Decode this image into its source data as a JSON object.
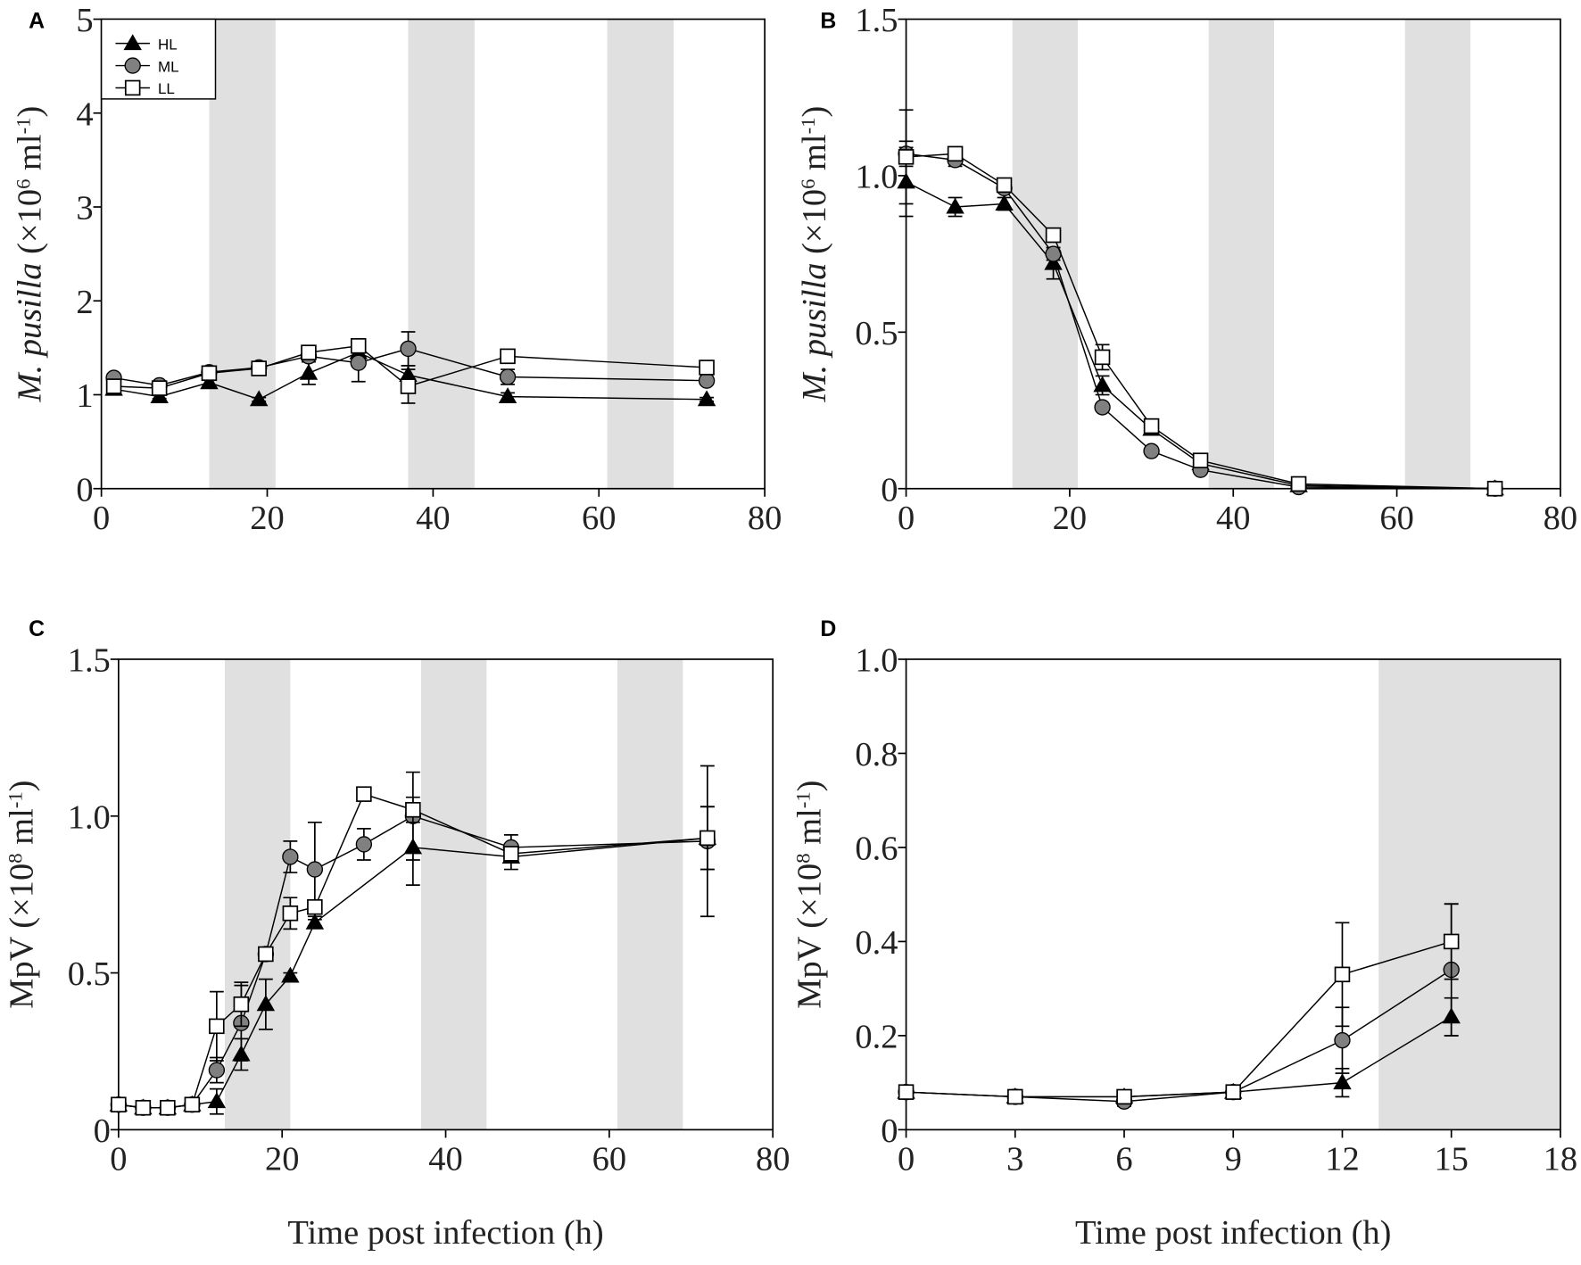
{
  "colors": {
    "shade": "#e0e0e0",
    "HL": "#000000",
    "ML": "#808080",
    "LL": "#ffffff",
    "axis": "#000000"
  },
  "legend": [
    {
      "name": "HL",
      "marker": "triangle"
    },
    {
      "name": "ML",
      "marker": "circle"
    },
    {
      "name": "LL",
      "marker": "square"
    }
  ],
  "chart_data": [
    {
      "type": "line",
      "panel": "A",
      "ylabel": {
        "italic": "M. pusilla",
        "rest": " (×10",
        "sup": "6",
        "unit": " ml",
        "sup2": "-1",
        "close": ")"
      },
      "xlabel": "",
      "xlim": [
        0,
        80
      ],
      "ylim": [
        0,
        5
      ],
      "xticks": [
        "0",
        "20",
        "40",
        "60",
        "80"
      ],
      "xtick_values": [
        0,
        20,
        40,
        60,
        80
      ],
      "yticks": [
        "0",
        "1",
        "2",
        "3",
        "4",
        "5"
      ],
      "ytick_values": [
        0,
        1,
        2,
        3,
        4,
        5
      ],
      "dark_periods": [
        [
          13,
          21
        ],
        [
          37,
          45
        ],
        [
          61,
          69
        ]
      ],
      "legend_placement": "top-left",
      "x": [
        1.5,
        7,
        13,
        19,
        25,
        31,
        37,
        49,
        73
      ],
      "series": [
        {
          "name": "HL",
          "values": [
            1.06,
            0.98,
            1.13,
            0.95,
            1.23,
            1.45,
            1.21,
            0.98,
            0.95
          ],
          "err": [
            0.02,
            0.02,
            0.03,
            0.02,
            0.12,
            0.05,
            0.1,
            0.04,
            0.02
          ]
        },
        {
          "name": "ML",
          "values": [
            1.18,
            1.1,
            1.24,
            1.29,
            1.41,
            1.34,
            1.49,
            1.19,
            1.15
          ],
          "err": [
            0.02,
            0.03,
            0.03,
            0.03,
            0.04,
            0.2,
            0.18,
            0.08,
            0.03
          ]
        },
        {
          "name": "LL",
          "values": [
            1.09,
            1.07,
            1.23,
            1.28,
            1.45,
            1.52,
            1.09,
            1.41,
            1.29
          ],
          "err": [
            0.03,
            0.03,
            0.03,
            0.03,
            0.03,
            0.06,
            0.18,
            0.03,
            0.03
          ]
        }
      ]
    },
    {
      "type": "line",
      "panel": "B",
      "ylabel": {
        "italic": "M. pusilla",
        "rest": " (×10",
        "sup": "6",
        "unit": " ml",
        "sup2": "-1",
        "close": ")"
      },
      "xlabel": "",
      "xlim": [
        0,
        80
      ],
      "ylim": [
        0,
        1.5
      ],
      "xticks": [
        "0",
        "20",
        "40",
        "60",
        "80"
      ],
      "xtick_values": [
        0,
        20,
        40,
        60,
        80
      ],
      "yticks": [
        "0",
        "0.5",
        "1.0",
        "1.5"
      ],
      "ytick_values": [
        0,
        0.5,
        1.0,
        1.5
      ],
      "dark_periods": [
        [
          13,
          21
        ],
        [
          37,
          45
        ],
        [
          61,
          69
        ]
      ],
      "x": [
        0,
        6,
        12,
        18,
        24,
        30,
        36,
        48,
        72
      ],
      "series": [
        {
          "name": "HL",
          "values": [
            0.98,
            0.9,
            0.91,
            0.72,
            0.33,
            0.19,
            0.08,
            0.01,
            0.0
          ],
          "err": [
            0.11,
            0.03,
            0.02,
            0.05,
            0.03,
            0.01,
            0.01,
            0.005,
            0.0
          ]
        },
        {
          "name": "ML",
          "values": [
            1.07,
            1.05,
            0.96,
            0.75,
            0.26,
            0.12,
            0.06,
            0.005,
            0.0
          ],
          "err": [
            0.04,
            0.02,
            0.01,
            0.02,
            0.01,
            0.01,
            0.01,
            0.005,
            0.0
          ]
        },
        {
          "name": "LL",
          "values": [
            1.06,
            1.07,
            0.97,
            0.81,
            0.42,
            0.2,
            0.09,
            0.015,
            0.0
          ],
          "err": [
            0.15,
            0.01,
            0.01,
            0.02,
            0.04,
            0.01,
            0.01,
            0.005,
            0.0
          ]
        }
      ]
    },
    {
      "type": "line",
      "panel": "C",
      "ylabel": {
        "italic": "",
        "rest": "MpV (×10",
        "sup": "8",
        "unit": " ml",
        "sup2": "-1",
        "close": ")"
      },
      "xlabel": "Time post infection (h)",
      "xlim": [
        0,
        80
      ],
      "ylim": [
        0,
        1.5
      ],
      "xticks": [
        "0",
        "20",
        "40",
        "60",
        "80"
      ],
      "xtick_values": [
        0,
        20,
        40,
        60,
        80
      ],
      "yticks": [
        "0",
        "0.5",
        "1.0",
        "1.5"
      ],
      "ytick_values": [
        0,
        0.5,
        1.0,
        1.5
      ],
      "dark_periods": [
        [
          13,
          21
        ],
        [
          37,
          45
        ],
        [
          61,
          69
        ]
      ],
      "x": [
        0,
        3,
        6,
        9,
        12,
        15,
        18,
        21,
        24,
        30,
        36,
        48,
        72
      ],
      "series": [
        {
          "name": "HL",
          "values": [
            0.08,
            0.07,
            0.07,
            0.08,
            0.09,
            0.24,
            0.4,
            0.49,
            0.66,
            null,
            0.9,
            0.87,
            0.93
          ],
          "err": [
            0.01,
            0.01,
            0.01,
            0.01,
            0.04,
            0.05,
            0.08,
            0.01,
            0.01,
            0,
            0.12,
            0.04,
            0.1
          ]
        },
        {
          "name": "ML",
          "values": [
            0.08,
            0.07,
            0.07,
            0.08,
            0.19,
            0.34,
            0.56,
            0.87,
            0.83,
            0.91,
            1.0,
            0.9,
            0.92
          ],
          "err": [
            0.01,
            0.01,
            0.01,
            0.01,
            0.04,
            0.12,
            0.02,
            0.05,
            0.15,
            0.05,
            0.14,
            0.04,
            0.24
          ]
        },
        {
          "name": "LL",
          "values": [
            0.08,
            0.07,
            0.07,
            0.08,
            0.33,
            0.4,
            0.56,
            0.69,
            0.71,
            1.07,
            1.02,
            0.88,
            0.93
          ],
          "err": [
            0.01,
            0.01,
            0.01,
            0.01,
            0.11,
            0.07,
            0.02,
            0.05,
            0.02,
            0.01,
            0.04,
            0.02,
            0.1
          ]
        }
      ]
    },
    {
      "type": "line",
      "panel": "D",
      "ylabel": {
        "italic": "",
        "rest": "MpV (×10",
        "sup": "8",
        "unit": " ml",
        "sup2": "-1",
        "close": ")"
      },
      "xlabel": "Time post infection (h)",
      "xlim": [
        0,
        18
      ],
      "ylim": [
        0,
        1.0
      ],
      "xticks": [
        "0",
        "3",
        "6",
        "9",
        "12",
        "15",
        "18"
      ],
      "xtick_values": [
        0,
        3,
        6,
        9,
        12,
        15,
        18
      ],
      "yticks": [
        "0",
        "0.2",
        "0.4",
        "0.6",
        "0.8",
        "1.0"
      ],
      "ytick_values": [
        0,
        0.2,
        0.4,
        0.6,
        0.8,
        1.0
      ],
      "dark_periods": [
        [
          13,
          18
        ]
      ],
      "x": [
        0,
        3,
        6,
        9,
        12,
        15
      ],
      "series": [
        {
          "name": "HL",
          "values": [
            0.08,
            0.07,
            0.07,
            0.08,
            0.1,
            0.24
          ],
          "err": [
            0.01,
            0.01,
            0.01,
            0.01,
            0.03,
            0.04
          ]
        },
        {
          "name": "ML",
          "values": [
            0.08,
            0.07,
            0.06,
            0.08,
            0.19,
            0.34
          ],
          "err": [
            0.01,
            0.01,
            0.01,
            0.01,
            0.07,
            0.14
          ]
        },
        {
          "name": "LL",
          "values": [
            0.08,
            0.07,
            0.07,
            0.08,
            0.33,
            0.4
          ],
          "err": [
            0.01,
            0.01,
            0.01,
            0.01,
            0.11,
            0.08
          ]
        }
      ]
    }
  ]
}
